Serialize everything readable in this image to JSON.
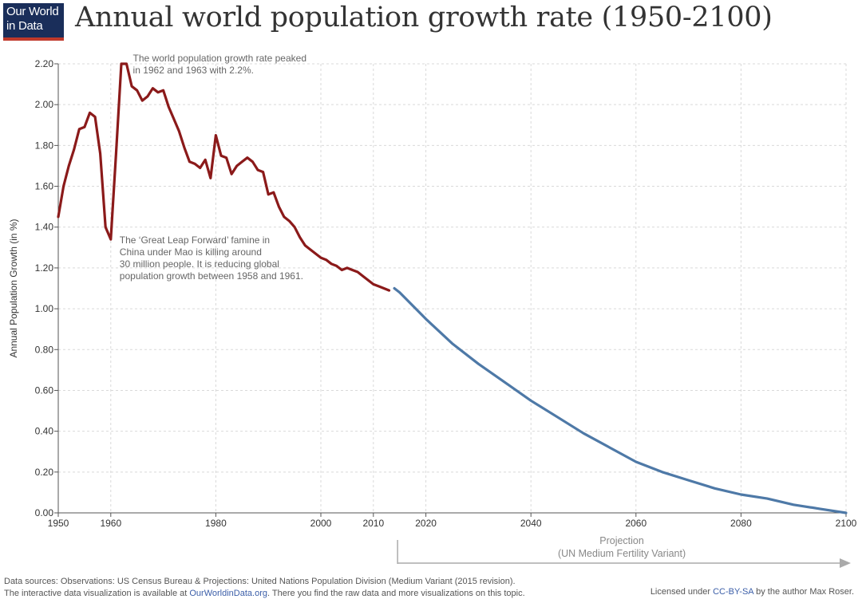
{
  "header": {
    "logo_line1": "Our World",
    "logo_line2": "in Data",
    "title": "Annual world population growth rate (1950-2100)"
  },
  "footer": {
    "line1": "Data sources: Observations: US Census Bureau & Projections: United Nations Population Division (Medium Variant (2015 revision).",
    "line2_prefix": "The interactive data visualization is available at ",
    "link": "OurWorldinData.org",
    "line2_suffix": ". There you find the raw data and more visualizations on this topic.",
    "license_prefix": "Licensed under ",
    "license_link": "CC-BY-SA",
    "license_suffix": " by the author Max Roser."
  },
  "chart_data": {
    "type": "line",
    "ylabel": "Annual Population Growth (in %)",
    "xlim": [
      1950,
      2100
    ],
    "ylim": [
      0,
      2.2
    ],
    "x_ticks": [
      1950,
      1960,
      1980,
      2000,
      2010,
      2020,
      2040,
      2060,
      2080,
      2100
    ],
    "y_ticks": [
      "0.00",
      "0.20",
      "0.40",
      "0.60",
      "0.80",
      "1.00",
      "1.20",
      "1.40",
      "1.60",
      "1.80",
      "2.00",
      "2.20"
    ],
    "grid": true,
    "series": [
      {
        "color": "#8b1a1a",
        "x": [
          1950,
          1951,
          1952,
          1953,
          1954,
          1955,
          1956,
          1957,
          1958,
          1959,
          1960,
          1961,
          1962,
          1963,
          1964,
          1965,
          1966,
          1967,
          1968,
          1969,
          1970,
          1971,
          1972,
          1973,
          1974,
          1975,
          1976,
          1977,
          1978,
          1979,
          1980,
          1981,
          1982,
          1983,
          1984,
          1985,
          1986,
          1987,
          1988,
          1989,
          1990,
          1991,
          1992,
          1993,
          1994,
          1995,
          1996,
          1997,
          1998,
          1999,
          2000,
          2001,
          2002,
          2003,
          2004,
          2005,
          2006,
          2007,
          2008,
          2009,
          2010,
          2011,
          2012,
          2013
        ],
        "y": [
          1.45,
          1.6,
          1.7,
          1.78,
          1.88,
          1.89,
          1.96,
          1.94,
          1.76,
          1.4,
          1.34,
          1.76,
          2.2,
          2.2,
          2.09,
          2.07,
          2.02,
          2.04,
          2.08,
          2.06,
          2.07,
          1.99,
          1.93,
          1.87,
          1.79,
          1.72,
          1.71,
          1.69,
          1.73,
          1.64,
          1.85,
          1.75,
          1.74,
          1.66,
          1.7,
          1.72,
          1.74,
          1.72,
          1.68,
          1.67,
          1.56,
          1.57,
          1.5,
          1.45,
          1.43,
          1.4,
          1.35,
          1.31,
          1.29,
          1.27,
          1.25,
          1.24,
          1.22,
          1.21,
          1.19,
          1.2,
          1.19,
          1.18,
          1.16,
          1.14,
          1.12,
          1.11,
          1.1,
          1.09
        ]
      },
      {
        "color": "#4e79a7",
        "x": [
          2014,
          2015,
          2020,
          2025,
          2030,
          2035,
          2040,
          2045,
          2050,
          2055,
          2060,
          2065,
          2070,
          2075,
          2080,
          2085,
          2090,
          2095,
          2100
        ],
        "y": [
          1.1,
          1.08,
          0.95,
          0.83,
          0.73,
          0.64,
          0.55,
          0.47,
          0.39,
          0.32,
          0.25,
          0.2,
          0.16,
          0.12,
          0.09,
          0.07,
          0.04,
          0.02,
          0.0
        ]
      }
    ],
    "annotations": [
      {
        "x": 1963,
        "y": 2.2,
        "lines": [
          "The world population growth rate peaked",
          "in 1962 and 1963 with 2.2%."
        ]
      },
      {
        "x": 1960,
        "y": 1.34,
        "lines": [
          "The ‘Great Leap Forward’ famine in",
          "China under Mao is killing around",
          "30 million people. It is reducing global",
          "population growth between 1958 and 1961."
        ]
      }
    ],
    "projection_label": [
      "Projection",
      "(UN Medium Fertility Variant)"
    ],
    "projection_start": 2014
  }
}
